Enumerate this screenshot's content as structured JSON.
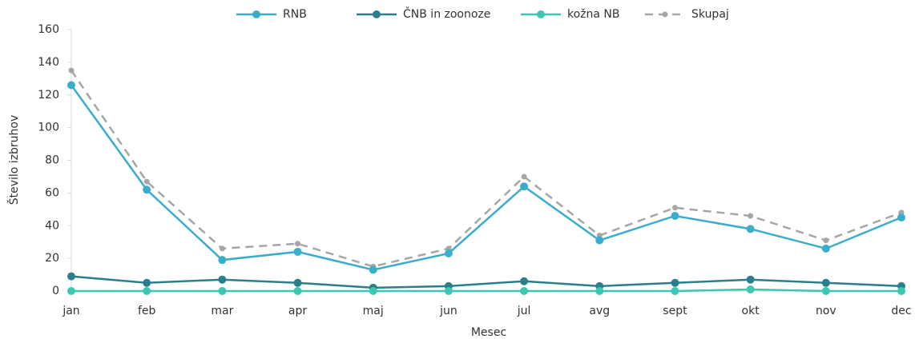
{
  "chart_data": {
    "type": "line",
    "xlabel": "Mesec",
    "ylabel": "Število izbruhov",
    "categories": [
      "jan",
      "feb",
      "mar",
      "apr",
      "maj",
      "jun",
      "jul",
      "avg",
      "sept",
      "okt",
      "nov",
      "dec"
    ],
    "series": [
      {
        "name": "RNB",
        "color": "#3aaccc",
        "dash": false,
        "values": [
          126,
          62,
          19,
          24,
          13,
          23,
          64,
          31,
          46,
          38,
          26,
          45
        ]
      },
      {
        "name": "ČNB in zoonoze",
        "color": "#2a7f8f",
        "dash": false,
        "values": [
          9,
          5,
          7,
          5,
          2,
          3,
          6,
          3,
          5,
          7,
          5,
          3
        ]
      },
      {
        "name": "kožna NB",
        "color": "#3cc7b0",
        "dash": false,
        "values": [
          0,
          0,
          0,
          0,
          0,
          0,
          0,
          0,
          0,
          1,
          0,
          0
        ]
      },
      {
        "name": "Skupaj",
        "color": "#a6a6a6",
        "dash": true,
        "values": [
          135,
          67,
          26,
          29,
          15,
          26,
          70,
          34,
          51,
          46,
          31,
          48
        ]
      }
    ],
    "ylim": [
      0,
      160
    ],
    "yticks": [
      0,
      20,
      40,
      60,
      80,
      100,
      120,
      140,
      160
    ],
    "grid": false,
    "legend": "top"
  }
}
